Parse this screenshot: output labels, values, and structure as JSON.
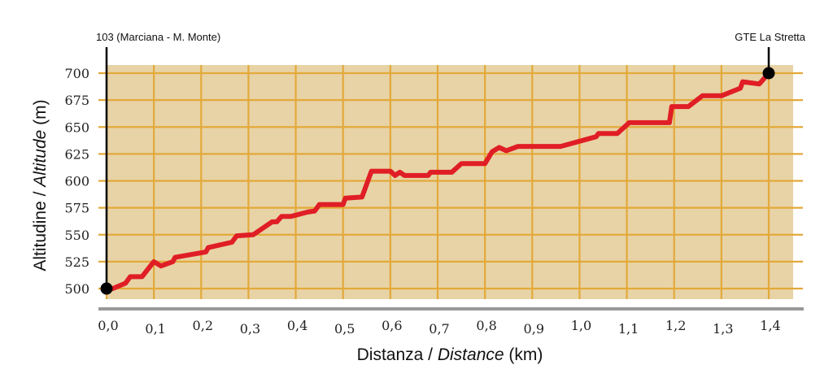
{
  "chart_data": {
    "type": "line",
    "title": "",
    "xlabel": {
      "prefix": "Distanza / ",
      "italic": "Distance",
      "suffix": " (km)"
    },
    "ylabel": {
      "prefix": "Altitudine / ",
      "italic": "Altitude",
      "suffix": " (m)"
    },
    "xlim": [
      0,
      1.4
    ],
    "ylim": [
      500,
      700
    ],
    "x_ticks": [
      0.0,
      0.1,
      0.2,
      0.3,
      0.4,
      0.5,
      0.6,
      0.7,
      0.8,
      0.9,
      1.0,
      1.1,
      1.2,
      1.3,
      1.4
    ],
    "x_tick_labels": [
      "0,0",
      "0,1",
      "0,2",
      "0,3",
      "0,4",
      "0,5",
      "0,6",
      "0,7",
      "0,8",
      "0,9",
      "1,0",
      "1,1",
      "1,2",
      "1,3",
      "1,4"
    ],
    "y_ticks": [
      500,
      525,
      550,
      575,
      600,
      625,
      650,
      675,
      700
    ],
    "y_tick_labels": [
      "500",
      "525",
      "550",
      "575",
      "600",
      "625",
      "650",
      "675",
      "700"
    ],
    "grid": true,
    "colors": {
      "plot_background": "#E8D3A6",
      "grid": "#E3A93A",
      "line": "#E01E25",
      "axis": "#999999",
      "marker": "#000000"
    },
    "start_marker": {
      "label": "103 (Marciana - M. Monte)",
      "x": 0.0,
      "y": 500
    },
    "end_marker": {
      "label": "GTE La Stretta",
      "x": 1.4,
      "y": 700
    },
    "series": [
      {
        "values": [
          [
            0.0,
            500
          ],
          [
            0.013,
            500
          ],
          [
            0.04,
            505
          ],
          [
            0.05,
            511
          ],
          [
            0.075,
            511
          ],
          [
            0.1,
            525
          ],
          [
            0.115,
            521
          ],
          [
            0.14,
            525
          ],
          [
            0.145,
            529
          ],
          [
            0.21,
            534
          ],
          [
            0.215,
            538
          ],
          [
            0.265,
            543
          ],
          [
            0.275,
            549
          ],
          [
            0.31,
            550
          ],
          [
            0.35,
            562
          ],
          [
            0.36,
            562
          ],
          [
            0.37,
            567
          ],
          [
            0.39,
            567
          ],
          [
            0.425,
            571
          ],
          [
            0.44,
            572
          ],
          [
            0.45,
            578
          ],
          [
            0.5,
            578
          ],
          [
            0.505,
            584
          ],
          [
            0.54,
            585
          ],
          [
            0.56,
            609
          ],
          [
            0.6,
            609
          ],
          [
            0.61,
            605
          ],
          [
            0.62,
            608
          ],
          [
            0.63,
            605
          ],
          [
            0.68,
            605
          ],
          [
            0.685,
            608
          ],
          [
            0.73,
            608
          ],
          [
            0.75,
            616
          ],
          [
            0.8,
            616
          ],
          [
            0.815,
            627
          ],
          [
            0.83,
            631
          ],
          [
            0.845,
            628
          ],
          [
            0.87,
            632
          ],
          [
            0.96,
            632
          ],
          [
            1.035,
            641
          ],
          [
            1.04,
            644
          ],
          [
            1.08,
            644
          ],
          [
            1.105,
            654
          ],
          [
            1.19,
            654
          ],
          [
            1.195,
            669
          ],
          [
            1.23,
            669
          ],
          [
            1.26,
            679
          ],
          [
            1.3,
            679
          ],
          [
            1.34,
            686
          ],
          [
            1.345,
            692
          ],
          [
            1.38,
            690
          ],
          [
            1.4,
            700
          ]
        ]
      }
    ]
  }
}
